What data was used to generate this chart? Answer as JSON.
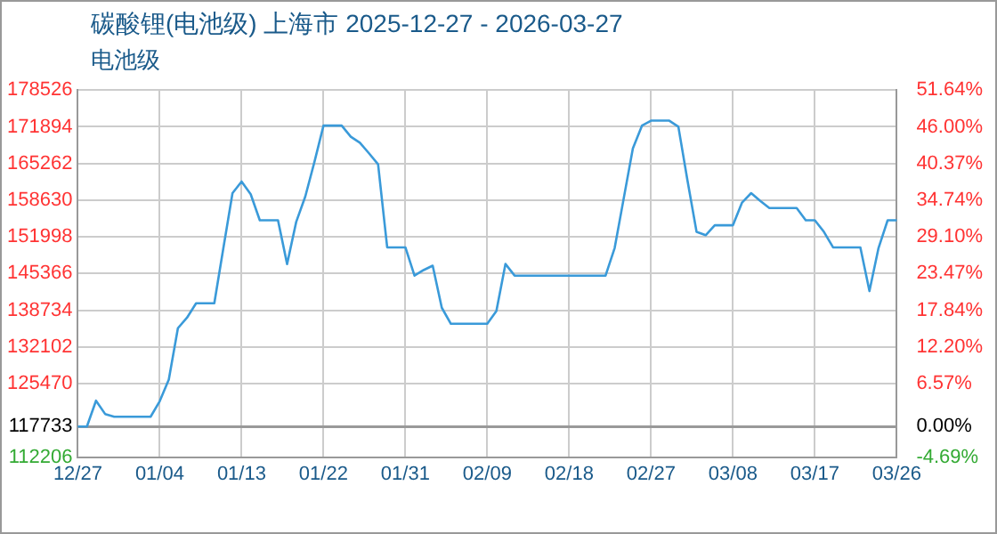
{
  "chart_data": {
    "type": "line",
    "title": "碳酸锂(电池级) 上海市 2025-12-27 - 2026-03-27",
    "subtitle": "电池级",
    "categories": [
      "12/27",
      null,
      null,
      null,
      null,
      null,
      null,
      null,
      null,
      "01/04",
      null,
      null,
      null,
      null,
      null,
      null,
      null,
      null,
      "01/13",
      null,
      null,
      null,
      null,
      null,
      null,
      null,
      null,
      "01/22",
      null,
      null,
      null,
      null,
      null,
      null,
      null,
      null,
      "01/31",
      null,
      null,
      null,
      null,
      null,
      null,
      null,
      null,
      "02/09",
      null,
      null,
      null,
      null,
      null,
      null,
      null,
      null,
      "02/18",
      null,
      null,
      null,
      null,
      null,
      null,
      null,
      null,
      "02/27",
      null,
      null,
      null,
      null,
      null,
      null,
      null,
      null,
      "03/08",
      null,
      null,
      null,
      null,
      null,
      null,
      null,
      null,
      "03/17",
      null,
      null,
      null,
      null,
      null,
      null,
      null,
      null,
      "03/26"
    ],
    "series": [
      {
        "color": "#3a9ad9",
        "values": [
          117733,
          117733,
          122400,
          120000,
          119500,
          119500,
          119500,
          119500,
          119500,
          122300,
          126200,
          135500,
          137400,
          140000,
          140000,
          140000,
          150000,
          159900,
          162000,
          159700,
          155000,
          155000,
          155000,
          147100,
          154700,
          159300,
          165500,
          172100,
          172100,
          172100,
          170100,
          169000,
          167100,
          165100,
          150100,
          150100,
          150100,
          145000,
          146000,
          146800,
          139200,
          136300,
          136300,
          136300,
          136300,
          136300,
          138600,
          147100,
          145000,
          145000,
          145000,
          145000,
          145000,
          145000,
          145000,
          145000,
          145000,
          145000,
          145000,
          150000,
          159000,
          168000,
          172100,
          173000,
          173000,
          173000,
          171900,
          162200,
          152900,
          152300,
          154100,
          154100,
          154100,
          158200,
          159900,
          158500,
          157200,
          157200,
          157200,
          157200,
          155000,
          155000,
          152900,
          150100,
          150100,
          150100,
          150100,
          142200,
          150000,
          155000,
          155000
        ]
      }
    ],
    "ylim": [
      112206,
      178526
    ],
    "yticks": [
      112206,
      117733,
      125470,
      132102,
      138734,
      145366,
      151998,
      158630,
      165262,
      171894,
      178526
    ],
    "y2lim": [
      -4.69,
      51.64
    ],
    "y2ticks": [
      {
        "value": -4.69,
        "label": "-4.69%"
      },
      {
        "value": 0,
        "label": "0.00%"
      },
      {
        "value": 6.57,
        "label": "6.57%"
      },
      {
        "value": 12.2,
        "label": "12.20%"
      },
      {
        "value": 17.84,
        "label": "17.84%"
      },
      {
        "value": 23.47,
        "label": "23.47%"
      },
      {
        "value": 29.1,
        "label": "29.10%"
      },
      {
        "value": 34.74,
        "label": "34.74%"
      },
      {
        "value": 40.37,
        "label": "40.37%"
      },
      {
        "value": 46.0,
        "label": "46.00%"
      },
      {
        "value": 51.64,
        "label": "51.64%"
      }
    ],
    "grid": true,
    "marker": "none",
    "line_style": "solid"
  }
}
